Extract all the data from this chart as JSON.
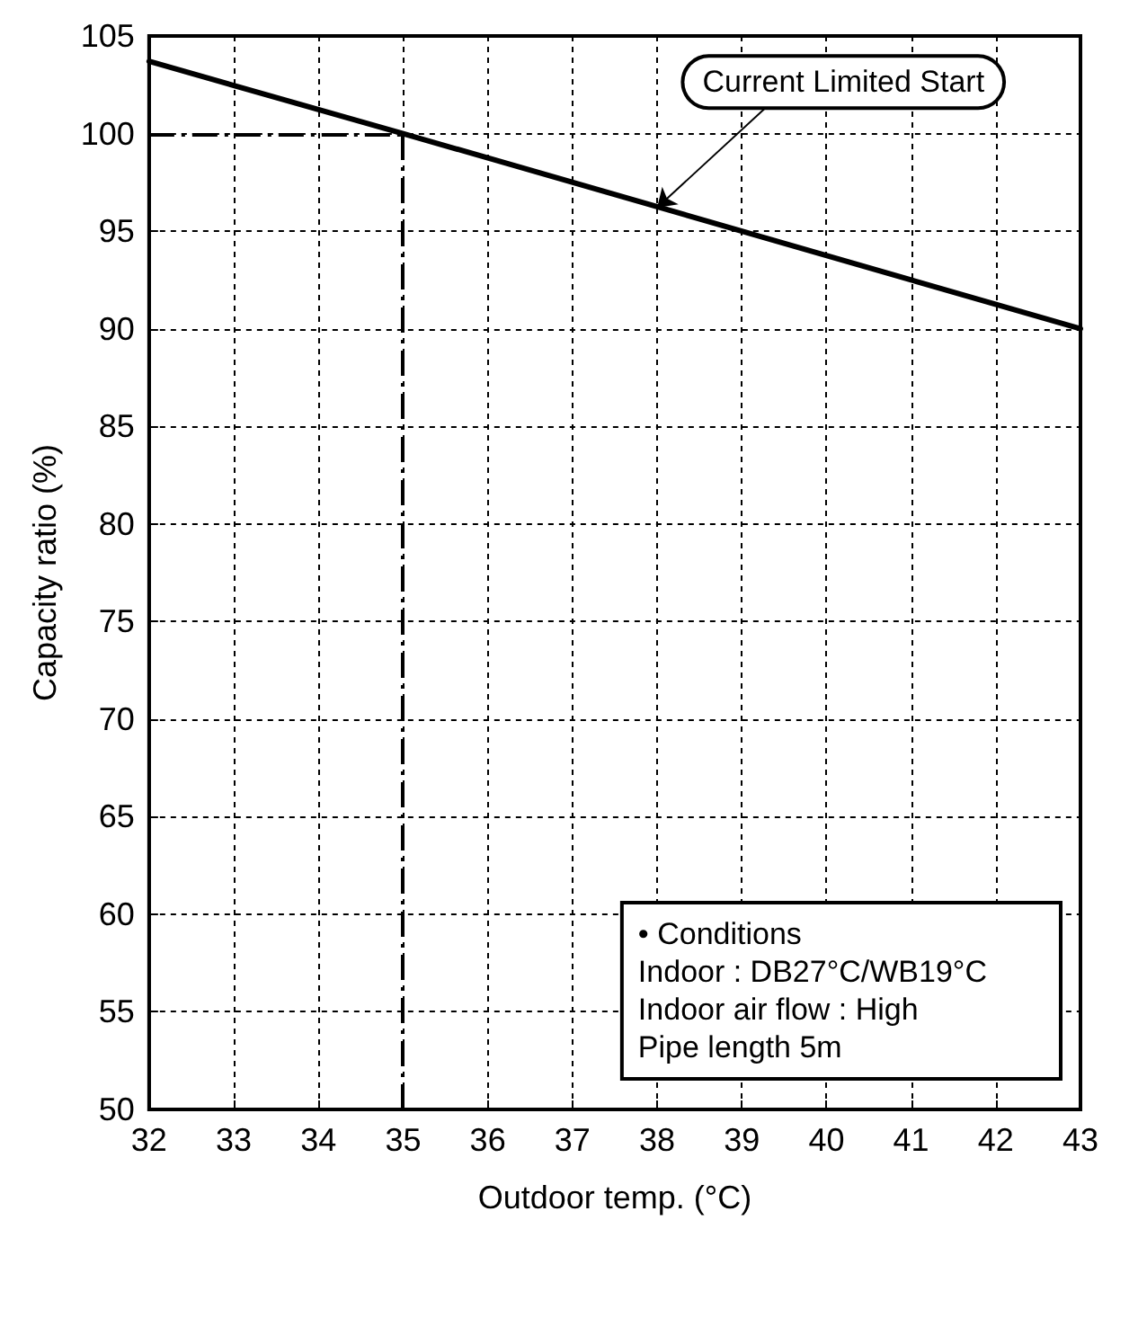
{
  "chart_data": {
    "type": "line",
    "xlabel": "Outdoor temp. (°C)",
    "ylabel": "Capacity ratio (%)",
    "x": [
      32,
      35,
      43
    ],
    "series": [
      {
        "color": "#000000",
        "values": [
          103.7,
          100,
          90.0
        ]
      }
    ],
    "xlim": [
      32,
      43
    ],
    "xticks": [
      32,
      33,
      34,
      35,
      36,
      37,
      38,
      39,
      40,
      41,
      42,
      43
    ],
    "ylim": [
      50,
      105
    ],
    "yticks": [
      50,
      55,
      60,
      65,
      70,
      75,
      80,
      85,
      90,
      95,
      100,
      105
    ],
    "grid": true,
    "marker": "none",
    "line_style": "solid",
    "ref_lines": [
      {
        "axis": "y",
        "value": 100,
        "color": "#000000",
        "line_style": "dashed"
      },
      {
        "axis": "x",
        "value": 35,
        "color": "#000000",
        "line_style": "dashed"
      }
    ],
    "annotations": [
      {
        "text": "Current Limited Start",
        "x": 38,
        "y": 96.2
      },
      "• Conditions\nIndoor : DB27°C/WB19°C\nIndoor air flow : High\nPipe length 5m"
    ]
  }
}
